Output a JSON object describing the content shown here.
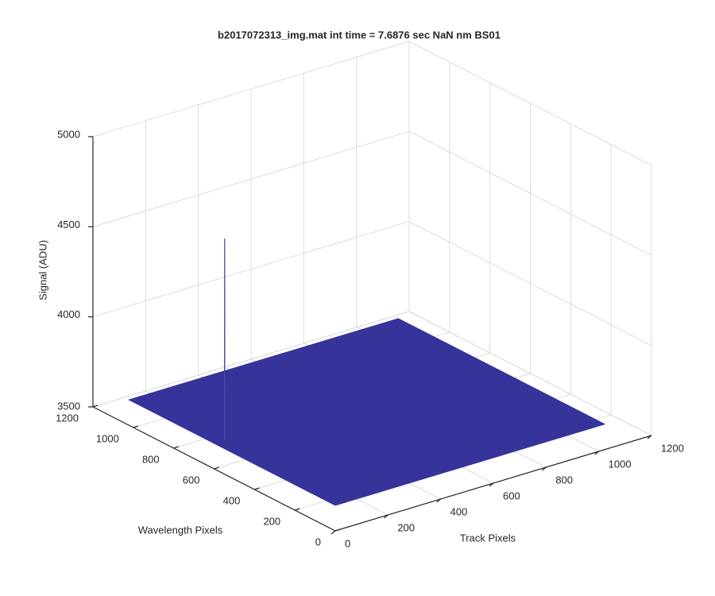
{
  "chart_data": {
    "type": "surface",
    "title": "b2017072313_img.mat int time = 7.6876 sec  NaN nm BS01",
    "xlabel": "Track Pixels",
    "ylabel": "Wavelength Pixels",
    "zlabel": "Signal (ADU)",
    "x": [
      1,
      39,
      40,
      41,
      1024
    ],
    "y": [
      1,
      599,
      600,
      601,
      1024
    ],
    "z": [
      [
        3640,
        3640,
        3640,
        3640,
        3640
      ],
      [
        3640,
        3640,
        3640,
        3640,
        3640
      ],
      [
        3640,
        3640,
        4760,
        3640,
        3640
      ],
      [
        3640,
        3640,
        3640,
        3640,
        3640
      ],
      [
        3640,
        3640,
        3640,
        3640,
        3640
      ]
    ],
    "colormap": [
      "#36339a",
      "#4db59a"
    ],
    "xlim": [
      0,
      1200
    ],
    "xticks": [
      0,
      200,
      400,
      600,
      800,
      1000,
      1200
    ],
    "ylim": [
      0,
      1200
    ],
    "yticks": [
      0,
      200,
      400,
      600,
      800,
      1000,
      1200
    ],
    "zlim": [
      3500,
      5000
    ],
    "zticks": [
      3500,
      4000,
      4500,
      5000
    ],
    "grid": true
  }
}
